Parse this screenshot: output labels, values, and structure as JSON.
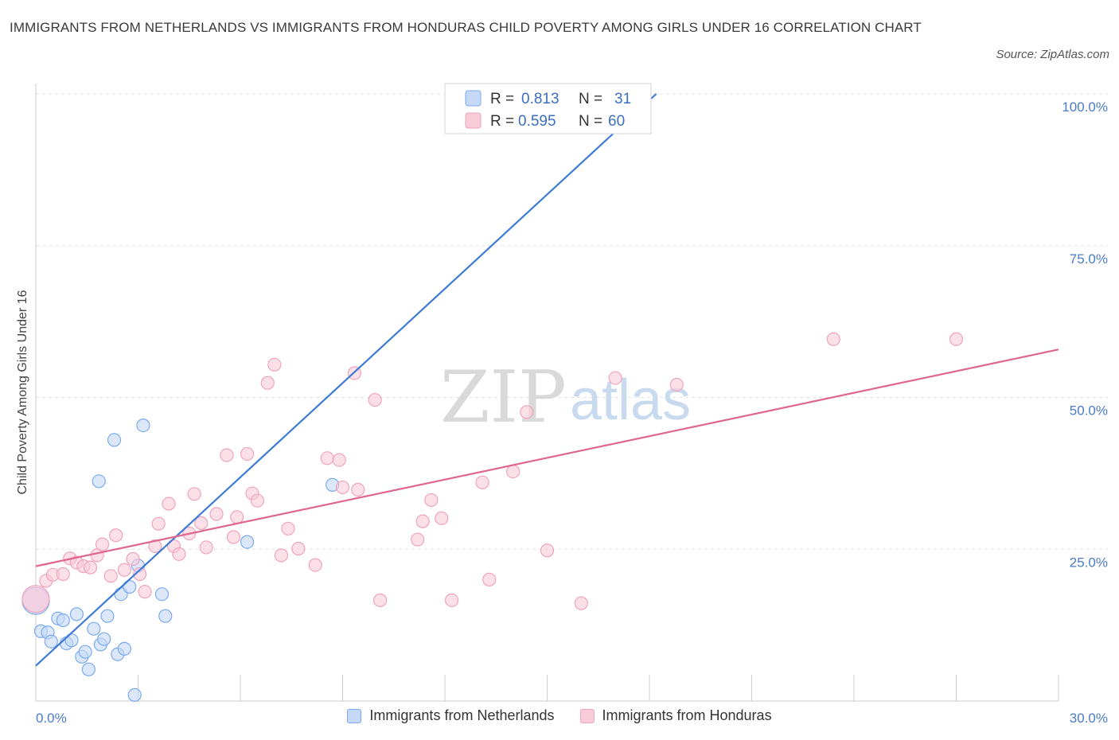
{
  "title": "IMMIGRANTS FROM NETHERLANDS VS IMMIGRANTS FROM HONDURAS CHILD POVERTY AMONG GIRLS UNDER 16 CORRELATION CHART",
  "source": "Source: ZipAtlas.com",
  "watermark": {
    "zip": "ZIP",
    "atlas": "atlas"
  },
  "legend_top": {
    "r_label": "R =",
    "n_label": "N =",
    "rows": [
      {
        "r": "0.813",
        "n": "31"
      },
      {
        "r": "0.595",
        "n": "60"
      }
    ]
  },
  "chart_data": {
    "type": "scatter",
    "title": "IMMIGRANTS FROM NETHERLANDS VS IMMIGRANTS FROM HONDURAS CHILD POVERTY AMONG GIRLS UNDER 16 CORRELATION CHART",
    "xlabel": "",
    "ylabel": "Child Poverty Among Girls Under 16",
    "xlim": [
      0,
      30
    ],
    "ylim": [
      0,
      100
    ],
    "x_tick_labels": [
      "0.0%",
      "30.0%"
    ],
    "y_ticks": [
      {
        "value": 25,
        "label": "25.0%"
      },
      {
        "value": 50,
        "label": "50.0%"
      },
      {
        "value": 75,
        "label": "75.0%"
      },
      {
        "value": 100,
        "label": "100.0%"
      }
    ],
    "grid": true,
    "legend_position": "bottom",
    "series": [
      {
        "name": "Immigrants from Netherlands",
        "color": "#7aaaf0",
        "fill": "#c5d9f7",
        "line_color": "#3d7bd6",
        "trend": {
          "x0": 0,
          "y0": 5.8,
          "x1": 18.2,
          "y1": 100
        },
        "points": [
          {
            "x": 0.0,
            "y": 16.5,
            "big": true
          },
          {
            "x": 0.15,
            "y": 11.5
          },
          {
            "x": 0.35,
            "y": 11.3
          },
          {
            "x": 0.45,
            "y": 9.8
          },
          {
            "x": 0.65,
            "y": 13.6
          },
          {
            "x": 0.8,
            "y": 13.3
          },
          {
            "x": 0.9,
            "y": 9.5
          },
          {
            "x": 1.05,
            "y": 10.0
          },
          {
            "x": 1.2,
            "y": 14.3
          },
          {
            "x": 1.35,
            "y": 7.3
          },
          {
            "x": 1.45,
            "y": 8.1
          },
          {
            "x": 1.55,
            "y": 5.2
          },
          {
            "x": 1.7,
            "y": 11.9
          },
          {
            "x": 1.85,
            "y": 36.2
          },
          {
            "x": 1.9,
            "y": 9.3
          },
          {
            "x": 2.0,
            "y": 10.2
          },
          {
            "x": 2.1,
            "y": 14.0
          },
          {
            "x": 2.3,
            "y": 43.0
          },
          {
            "x": 2.4,
            "y": 7.7
          },
          {
            "x": 2.5,
            "y": 17.6
          },
          {
            "x": 2.6,
            "y": 8.6
          },
          {
            "x": 2.75,
            "y": 18.8
          },
          {
            "x": 2.9,
            "y": 1.0
          },
          {
            "x": 3.0,
            "y": 22.3
          },
          {
            "x": 3.15,
            "y": 45.4
          },
          {
            "x": 3.7,
            "y": 17.6
          },
          {
            "x": 3.8,
            "y": 14.0
          },
          {
            "x": 6.2,
            "y": 26.2
          },
          {
            "x": 8.7,
            "y": 35.6
          },
          {
            "x": 15.5,
            "y": 100.0
          },
          {
            "x": 16.0,
            "y": 99.5
          }
        ]
      },
      {
        "name": "Immigrants from Honduras",
        "color": "#f0a3bc",
        "fill": "#f8cbd9",
        "line_color": "#e0668f",
        "trend": {
          "x0": 0,
          "y0": 22.2,
          "x1": 30,
          "y1": 57.9
        },
        "points": [
          {
            "x": 0.0,
            "y": 16.8,
            "big": true
          },
          {
            "x": 0.3,
            "y": 19.8
          },
          {
            "x": 0.5,
            "y": 20.8
          },
          {
            "x": 0.8,
            "y": 20.9
          },
          {
            "x": 1.0,
            "y": 23.5
          },
          {
            "x": 1.2,
            "y": 22.8
          },
          {
            "x": 1.4,
            "y": 22.2
          },
          {
            "x": 1.6,
            "y": 22.0
          },
          {
            "x": 1.8,
            "y": 24.0
          },
          {
            "x": 1.95,
            "y": 25.8
          },
          {
            "x": 2.2,
            "y": 20.6
          },
          {
            "x": 2.35,
            "y": 27.3
          },
          {
            "x": 2.6,
            "y": 21.6
          },
          {
            "x": 2.85,
            "y": 23.4
          },
          {
            "x": 3.05,
            "y": 20.9
          },
          {
            "x": 3.2,
            "y": 18.0
          },
          {
            "x": 3.5,
            "y": 25.5
          },
          {
            "x": 3.6,
            "y": 29.2
          },
          {
            "x": 3.9,
            "y": 32.5
          },
          {
            "x": 4.05,
            "y": 25.5
          },
          {
            "x": 4.2,
            "y": 24.2
          },
          {
            "x": 4.5,
            "y": 27.6
          },
          {
            "x": 4.65,
            "y": 34.1
          },
          {
            "x": 4.85,
            "y": 29.3
          },
          {
            "x": 5.0,
            "y": 25.3
          },
          {
            "x": 5.3,
            "y": 30.8
          },
          {
            "x": 5.6,
            "y": 40.5
          },
          {
            "x": 5.8,
            "y": 27.0
          },
          {
            "x": 5.9,
            "y": 30.3
          },
          {
            "x": 6.2,
            "y": 40.7
          },
          {
            "x": 6.35,
            "y": 34.2
          },
          {
            "x": 6.5,
            "y": 33.0
          },
          {
            "x": 6.8,
            "y": 52.4
          },
          {
            "x": 7.0,
            "y": 55.4
          },
          {
            "x": 7.2,
            "y": 24.0
          },
          {
            "x": 7.4,
            "y": 28.4
          },
          {
            "x": 7.7,
            "y": 25.1
          },
          {
            "x": 8.2,
            "y": 22.4
          },
          {
            "x": 8.55,
            "y": 40.0
          },
          {
            "x": 8.9,
            "y": 39.7
          },
          {
            "x": 9.0,
            "y": 35.2
          },
          {
            "x": 9.35,
            "y": 54.0
          },
          {
            "x": 9.45,
            "y": 34.8
          },
          {
            "x": 9.95,
            "y": 49.6
          },
          {
            "x": 10.1,
            "y": 16.6
          },
          {
            "x": 11.2,
            "y": 26.6
          },
          {
            "x": 11.35,
            "y": 29.6
          },
          {
            "x": 11.6,
            "y": 33.1
          },
          {
            "x": 11.9,
            "y": 30.1
          },
          {
            "x": 12.2,
            "y": 16.6
          },
          {
            "x": 13.1,
            "y": 36.0
          },
          {
            "x": 13.3,
            "y": 20.0
          },
          {
            "x": 14.0,
            "y": 37.8
          },
          {
            "x": 14.4,
            "y": 47.6
          },
          {
            "x": 15.0,
            "y": 24.8
          },
          {
            "x": 16.0,
            "y": 16.1
          },
          {
            "x": 17.0,
            "y": 53.2
          },
          {
            "x": 18.8,
            "y": 52.1
          },
          {
            "x": 23.4,
            "y": 59.6
          },
          {
            "x": 27.0,
            "y": 59.6
          }
        ]
      }
    ]
  }
}
